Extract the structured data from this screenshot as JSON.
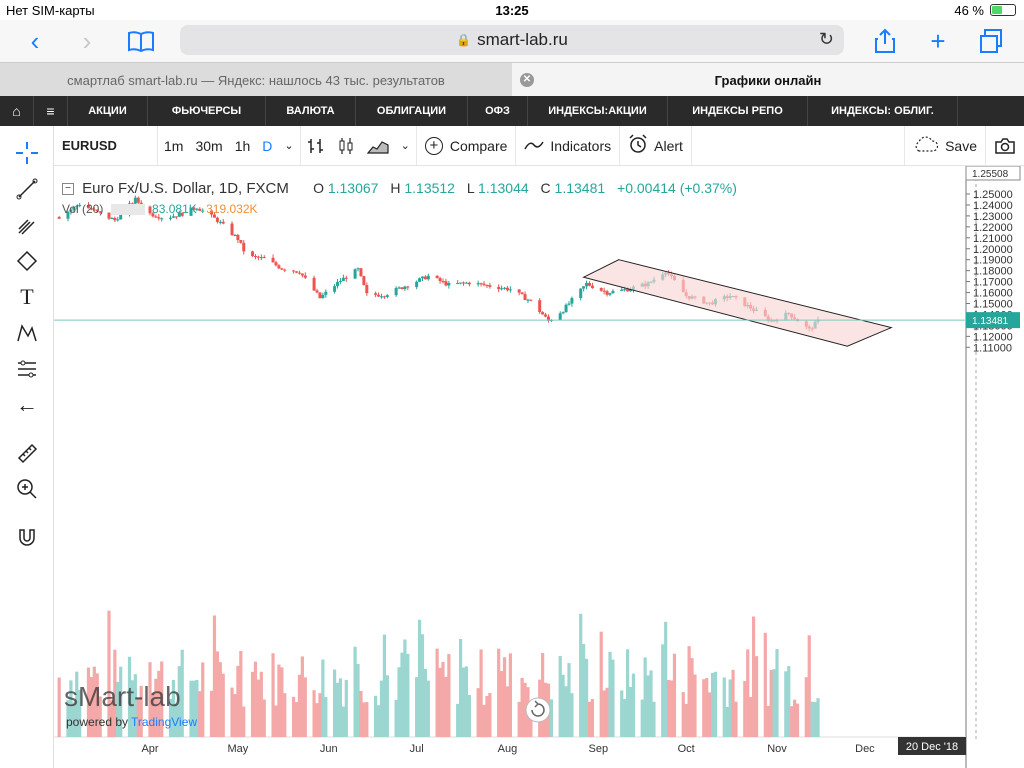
{
  "status": {
    "carrier": "Нет SIM-карты",
    "time": "13:25",
    "battery": "46 %",
    "battery_level": 0.46
  },
  "browser": {
    "url": "smart-lab.ru"
  },
  "tabs": [
    {
      "title": "смартлаб smart-lab.ru — Яндекс: нашлось 43 тыс. результатов"
    },
    {
      "title": "Графики онлайн"
    }
  ],
  "nav": {
    "items": [
      "АКЦИИ",
      "ФЬЮЧЕРСЫ",
      "ВАЛЮТА",
      "ОБЛИГАЦИИ",
      "ОФЗ",
      "ИНДЕКСЫ:АКЦИИ",
      "ИНДЕКСЫ РЕПО",
      "ИНДЕКСЫ: ОБЛИГ."
    ]
  },
  "chart_toolbar": {
    "symbol": "EURUSD",
    "intervals": [
      "1m",
      "30m",
      "1h",
      "D"
    ],
    "active_interval": "D",
    "compare": "Compare",
    "indicators": "Indicators",
    "alert": "Alert",
    "save": "Save"
  },
  "legend": {
    "title": "Euro Fx/U.S. Dollar, 1D, FXCM",
    "o_label": "O",
    "o": "1.13067",
    "h_label": "H",
    "h": "1.13512",
    "l_label": "L",
    "l": "1.13044",
    "c_label": "C",
    "c": "1.13481",
    "change": "+0.00414 (+0.37%)",
    "vol_label": "Vol (20)",
    "vol_value": "83.081K",
    "vol_ma": "319.032K"
  },
  "watermark": {
    "brand": "sMart-lab",
    "powered": "powered by",
    "provider": "TradingView"
  },
  "chart_data": {
    "type": "candlestick",
    "title": "Euro Fx/U.S. Dollar, 1D, FXCM",
    "y_ticks": [
      "1.25000",
      "1.24000",
      "1.23000",
      "1.22000",
      "1.21000",
      "1.20000",
      "1.19000",
      "1.18000",
      "1.17000",
      "1.16000",
      "1.15000",
      "1.14000",
      "1.13000",
      "1.12000",
      "1.11000"
    ],
    "x_ticks": [
      "Apr",
      "May",
      "Jun",
      "Jul",
      "Aug",
      "Sep",
      "Oct",
      "Nov",
      "Dec"
    ],
    "top_price_label": "1.25508",
    "last_price_label": "1.13481",
    "last_price": 1.13481,
    "date_label": "20 Dec '18",
    "ylim": [
      1.1,
      1.255
    ],
    "path": [
      [
        "Mar 1",
        1.229
      ],
      [
        "Mar 8",
        1.241
      ],
      [
        "Mar 15",
        1.232
      ],
      [
        "Mar 20",
        1.226
      ],
      [
        "Mar 27",
        1.245
      ],
      [
        "Apr 1",
        1.232
      ],
      [
        "Apr 6",
        1.228
      ],
      [
        "Apr 12",
        1.232
      ],
      [
        "Apr 17",
        1.238
      ],
      [
        "Apr 24",
        1.226
      ],
      [
        "May 1",
        1.209
      ],
      [
        "May 4",
        1.193
      ],
      [
        "May 10",
        1.191
      ],
      [
        "May 16",
        1.182
      ],
      [
        "May 22",
        1.179
      ],
      [
        "May 29",
        1.155
      ],
      [
        "Jun 5",
        1.171
      ],
      [
        "Jun 11",
        1.181
      ],
      [
        "Jun 14",
        1.158
      ],
      [
        "Jun 20",
        1.158
      ],
      [
        "Jun 28",
        1.167
      ],
      [
        "Jul 5",
        1.175
      ],
      [
        "Jul 12",
        1.167
      ],
      [
        "Jul 19",
        1.169
      ],
      [
        "Jul 26",
        1.166
      ],
      [
        "Aug 2",
        1.163
      ],
      [
        "Aug 9",
        1.152
      ],
      [
        "Aug 15",
        1.134
      ],
      [
        "Aug 20",
        1.144
      ],
      [
        "Aug 28",
        1.168
      ],
      [
        "Sep 4",
        1.16
      ],
      [
        "Sep 11",
        1.163
      ],
      [
        "Sep 18",
        1.168
      ],
      [
        "Sep 24",
        1.18
      ],
      [
        "Oct 1",
        1.157
      ],
      [
        "Oct 9",
        1.15
      ],
      [
        "Oct 16",
        1.157
      ],
      [
        "Oct 23",
        1.146
      ],
      [
        "Oct 30",
        1.134
      ],
      [
        "Nov 5",
        1.141
      ],
      [
        "Nov 12",
        1.126
      ],
      [
        "Nov 15",
        1.134
      ]
    ],
    "channel": {
      "upper": [
        [
          "Sep 8",
          1.19
        ],
        [
          "Dec 10",
          1.128
        ]
      ],
      "lower": [
        [
          "Aug 27",
          1.174
        ],
        [
          "Nov 25",
          1.111
        ]
      ]
    }
  },
  "colors": {
    "up": "#26a69a",
    "down": "#ef5350",
    "vol_up": "#9cd6d0",
    "vol_down": "#f4a9a8",
    "channel_fill": "#f9d6d6",
    "accent": "#1a7dff"
  }
}
